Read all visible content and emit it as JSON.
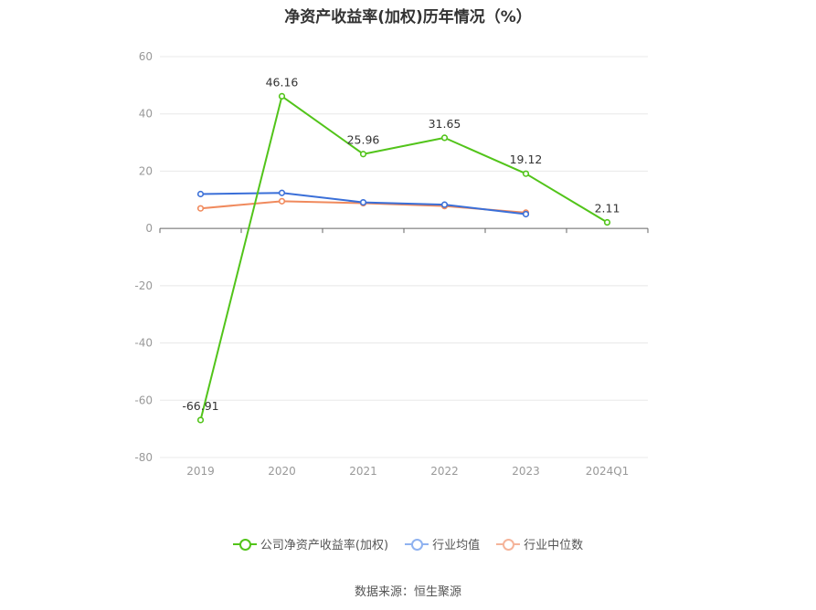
{
  "chart_data": {
    "type": "line",
    "title": "净资产收益率(加权)历年情况（%）",
    "categories": [
      "2019",
      "2020",
      "2021",
      "2022",
      "2023",
      "2024Q1"
    ],
    "ylim": [
      -80,
      60
    ],
    "yticks": [
      "60",
      "40",
      "20",
      "0",
      "-20",
      "-40",
      "-60",
      "-80"
    ],
    "grid": true,
    "legend_position": "bottom",
    "series": [
      {
        "name": "公司净资产收益率(加权)",
        "color": "#52c41a",
        "values": [
          -66.91,
          46.16,
          25.96,
          31.65,
          19.12,
          2.11
        ],
        "labels": [
          "-66.91",
          "46.16",
          "25.96",
          "31.65",
          "19.12",
          "2.11"
        ]
      },
      {
        "name": "行业均值",
        "color": "#3a6fd8",
        "legend_color": "#8fb2f0",
        "values": [
          12.0,
          12.4,
          9.1,
          8.3,
          5.0,
          null
        ]
      },
      {
        "name": "行业中位数",
        "color": "#f08a5d",
        "legend_color": "#f5b49a",
        "values": [
          7.0,
          9.5,
          8.8,
          7.8,
          5.5,
          null
        ]
      }
    ]
  },
  "source": "数据来源：恒生聚源"
}
